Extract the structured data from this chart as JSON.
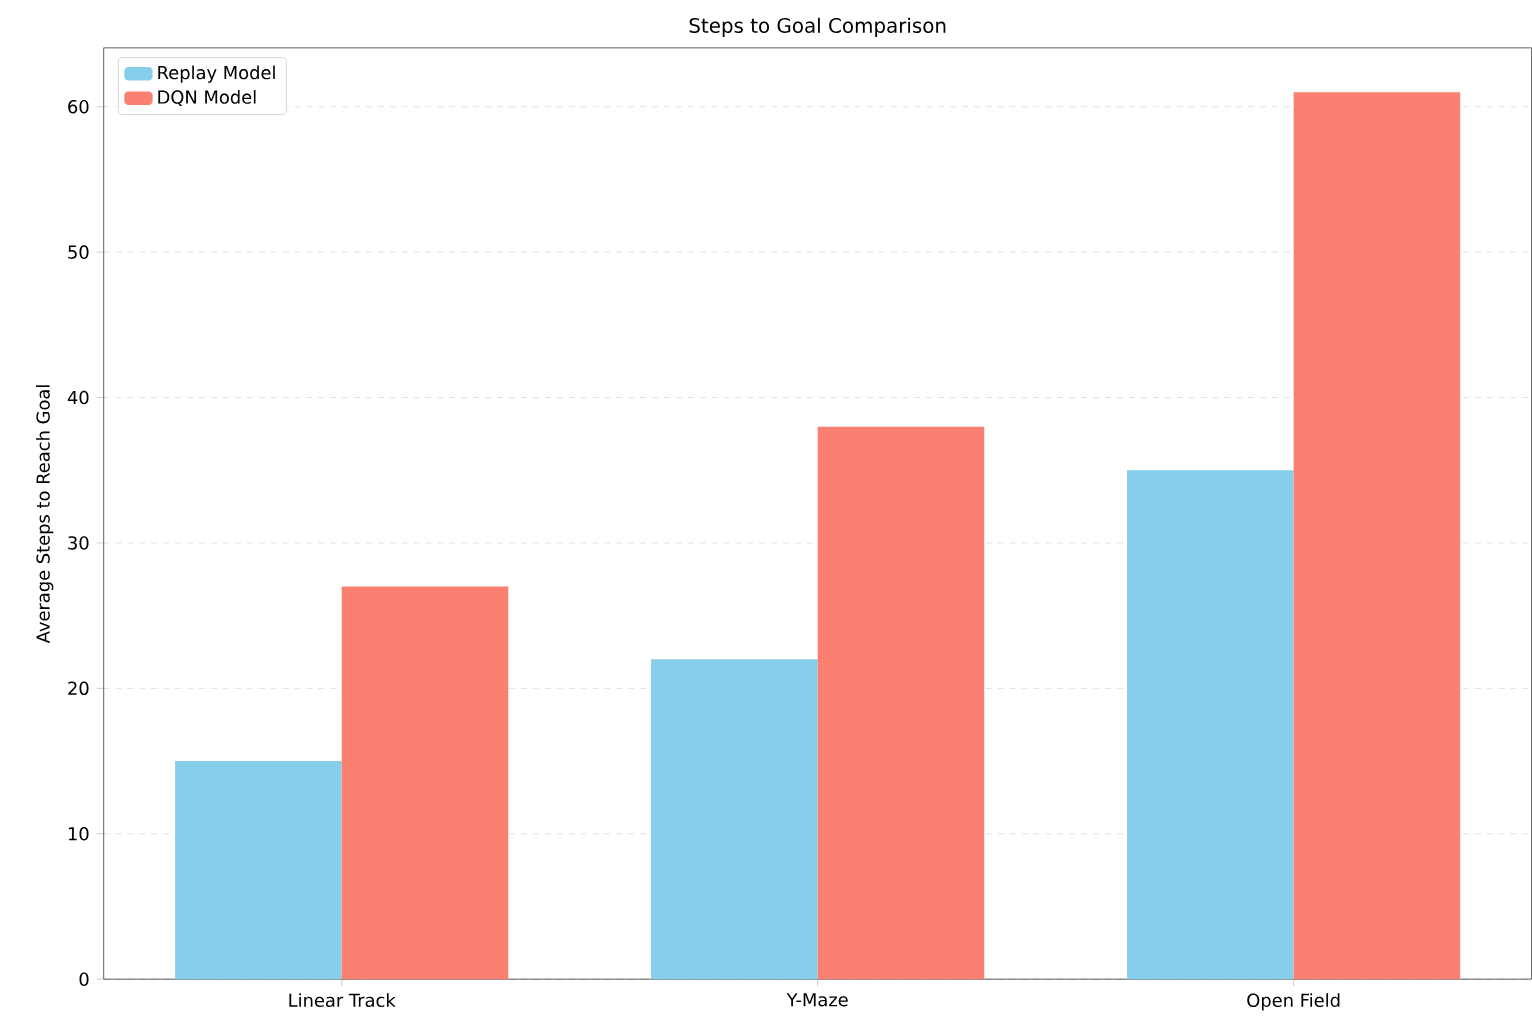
{
  "chart_data": {
    "type": "bar",
    "title": "Steps to Goal Comparison",
    "ylabel": "Average Steps to Reach Goal",
    "categories": [
      "Linear Track",
      "Y-Maze",
      "Open Field"
    ],
    "series": [
      {
        "name": "Replay Model",
        "color": "#87ceeb",
        "values": [
          15,
          22,
          35
        ]
      },
      {
        "name": "DQN Model",
        "color": "#fa8072",
        "values": [
          27,
          38,
          61
        ]
      }
    ],
    "ylim": [
      0,
      64.05
    ],
    "yticks": [
      0,
      10,
      20,
      30,
      40,
      50,
      60
    ],
    "grid": "y",
    "legend": "top left"
  }
}
